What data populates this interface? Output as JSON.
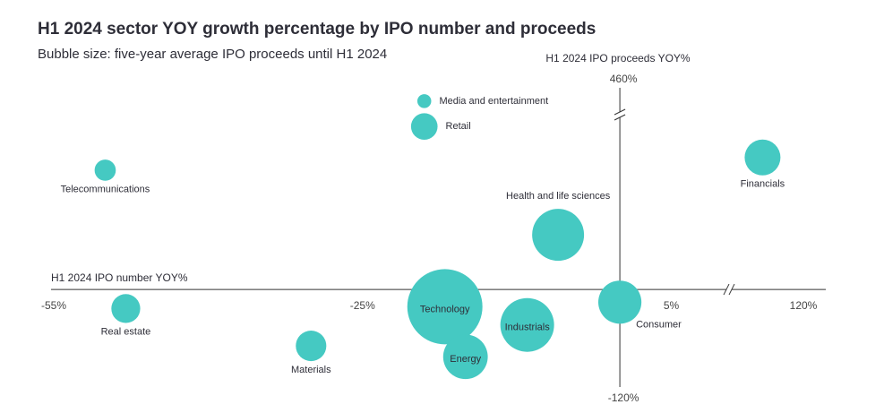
{
  "chart_data": {
    "type": "bubble",
    "title": "H1 2024 sector YOY growth percentage by IPO number and proceeds",
    "subtitle": "Bubble size: five-year average IPO proceeds until H1 2024",
    "x_label": "H1 2024 IPO number YOY%",
    "y_label": "H1 2024 IPO proceeds YOY%",
    "xlim": [
      -55,
      120
    ],
    "ylim": [
      -120,
      460
    ],
    "x_break": [
      10,
      110
    ],
    "y_break": [
      190,
      420
    ],
    "xticks": [
      {
        "value": -55,
        "label": "-55%"
      },
      {
        "value": -25,
        "label": "-25%"
      },
      {
        "value": 5,
        "label": "5%"
      },
      {
        "value": 120,
        "label": "120%"
      }
    ],
    "yticks": [
      {
        "value": 460,
        "label": "460%"
      },
      {
        "value": -120,
        "label": "-120%"
      }
    ],
    "color": "#45c9c2",
    "labels": [
      "Media and entertainment",
      "Retail",
      "Telecommunications",
      "Financials",
      "Health and life sciences",
      "Real estate",
      "Materials",
      "Technology",
      "Industrials",
      "Energy",
      "Consumer"
    ],
    "x": [
      -19,
      -19,
      -50,
      114,
      -6,
      -48,
      -30,
      -17,
      -9,
      -15,
      0
    ],
    "values": [
      438,
      179,
      131,
      145,
      60,
      -21,
      -62,
      -19,
      -39,
      -74,
      -14
    ],
    "sizes": [
      6,
      22,
      14,
      40,
      84,
      26,
      29,
      176,
      90,
      62,
      58
    ]
  }
}
